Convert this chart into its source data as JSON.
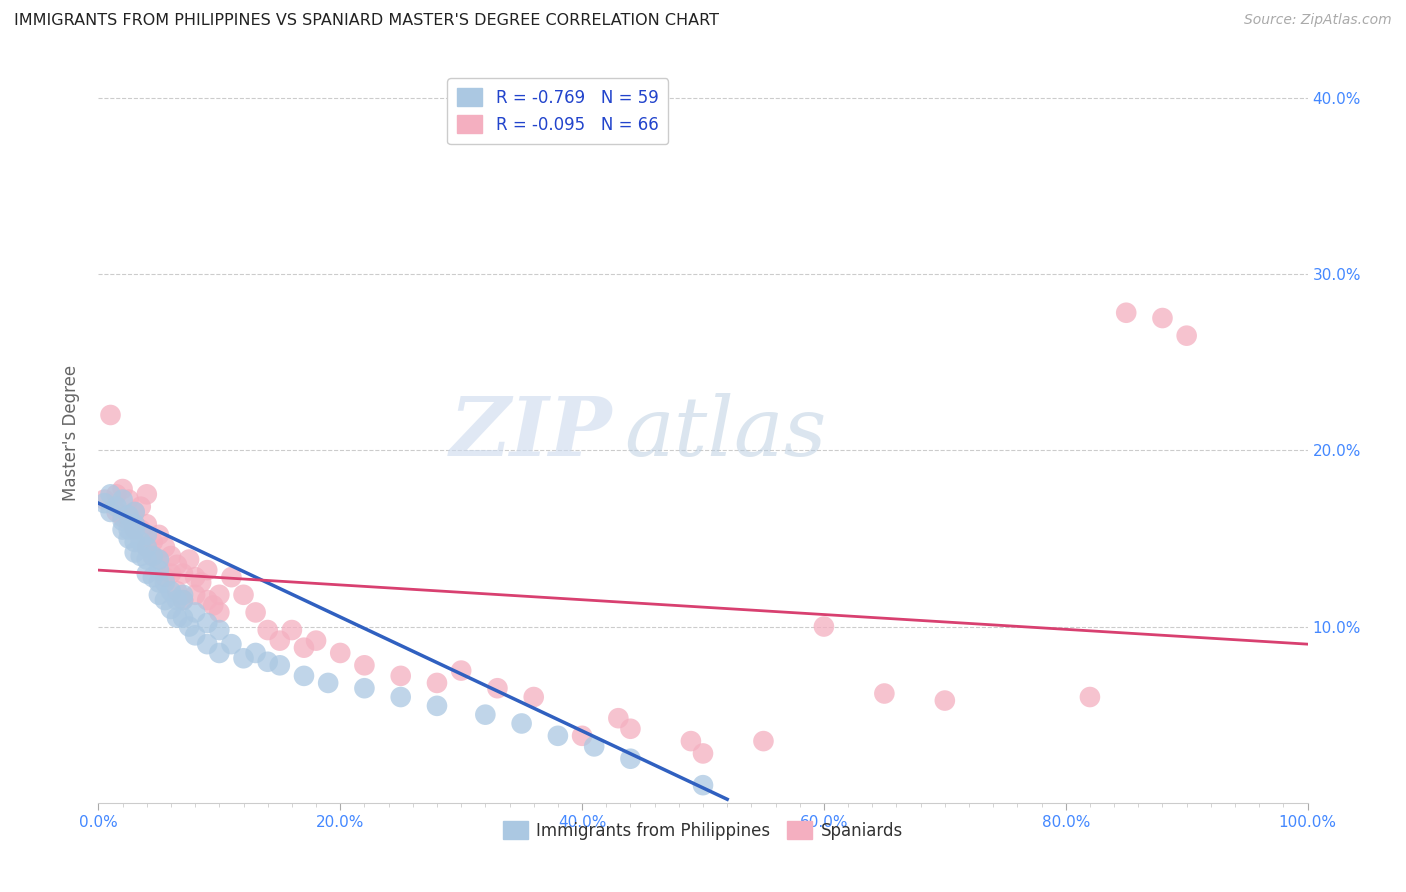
{
  "title": "IMMIGRANTS FROM PHILIPPINES VS SPANIARD MASTER'S DEGREE CORRELATION CHART",
  "source_text": "Source: ZipAtlas.com",
  "ylabel": "Master's Degree",
  "xlim": [
    0,
    1.0
  ],
  "ylim": [
    0,
    0.42
  ],
  "xtick_labels": [
    "0.0%",
    "",
    "",
    "",
    "",
    "",
    "",
    "",
    "",
    "",
    "20.0%",
    "",
    "",
    "",
    "",
    "",
    "",
    "",
    "",
    "",
    "40.0%",
    "",
    "",
    "",
    "",
    "",
    "",
    "",
    "",
    "",
    "60.0%",
    "",
    "",
    "",
    "",
    "",
    "",
    "",
    "",
    "",
    "80.0%",
    "",
    "",
    "",
    "",
    "",
    "",
    "",
    "",
    "",
    "100.0%"
  ],
  "xtick_vals": [
    0.0,
    0.02,
    0.04,
    0.06,
    0.08,
    0.1,
    0.12,
    0.14,
    0.16,
    0.18,
    0.2,
    0.22,
    0.24,
    0.26,
    0.28,
    0.3,
    0.32,
    0.34,
    0.36,
    0.38,
    0.4,
    0.42,
    0.44,
    0.46,
    0.48,
    0.5,
    0.52,
    0.54,
    0.56,
    0.58,
    0.6,
    0.62,
    0.64,
    0.66,
    0.68,
    0.7,
    0.72,
    0.74,
    0.76,
    0.78,
    0.8,
    0.82,
    0.84,
    0.86,
    0.88,
    0.9,
    0.92,
    0.94,
    0.96,
    0.98,
    1.0
  ],
  "ytick_vals": [
    0.1,
    0.2,
    0.3,
    0.4
  ],
  "ytick_labels": [
    "10.0%",
    "20.0%",
    "30.0%",
    "40.0%"
  ],
  "legend_blue_label": "R = -0.769   N = 59",
  "legend_pink_label": "R = -0.095   N = 66",
  "watermark_zip": "ZIP",
  "watermark_atlas": "atlas",
  "blue_color": "#abc8e2",
  "pink_color": "#f4afc0",
  "blue_line_color": "#3060c0",
  "pink_line_color": "#d84070",
  "title_color": "#222222",
  "axis_label_color": "#4488ff",
  "grid_color": "#cccccc",
  "blue_scatter_x": [
    0.005,
    0.01,
    0.01,
    0.015,
    0.02,
    0.02,
    0.02,
    0.025,
    0.025,
    0.025,
    0.03,
    0.03,
    0.03,
    0.03,
    0.03,
    0.035,
    0.035,
    0.04,
    0.04,
    0.04,
    0.04,
    0.045,
    0.045,
    0.05,
    0.05,
    0.05,
    0.05,
    0.055,
    0.055,
    0.06,
    0.06,
    0.065,
    0.065,
    0.07,
    0.07,
    0.07,
    0.075,
    0.08,
    0.08,
    0.09,
    0.09,
    0.1,
    0.1,
    0.11,
    0.12,
    0.13,
    0.14,
    0.15,
    0.17,
    0.19,
    0.22,
    0.25,
    0.28,
    0.32,
    0.35,
    0.38,
    0.41,
    0.44,
    0.5
  ],
  "blue_scatter_y": [
    0.17,
    0.175,
    0.165,
    0.168,
    0.172,
    0.16,
    0.155,
    0.163,
    0.155,
    0.15,
    0.165,
    0.158,
    0.148,
    0.142,
    0.155,
    0.148,
    0.14,
    0.145,
    0.138,
    0.13,
    0.152,
    0.14,
    0.128,
    0.132,
    0.125,
    0.118,
    0.138,
    0.125,
    0.115,
    0.12,
    0.11,
    0.115,
    0.105,
    0.115,
    0.105,
    0.118,
    0.1,
    0.108,
    0.095,
    0.102,
    0.09,
    0.098,
    0.085,
    0.09,
    0.082,
    0.085,
    0.08,
    0.078,
    0.072,
    0.068,
    0.065,
    0.06,
    0.055,
    0.05,
    0.045,
    0.038,
    0.032,
    0.025,
    0.01
  ],
  "pink_scatter_x": [
    0.005,
    0.01,
    0.015,
    0.015,
    0.02,
    0.02,
    0.025,
    0.025,
    0.03,
    0.03,
    0.03,
    0.035,
    0.035,
    0.04,
    0.04,
    0.04,
    0.045,
    0.045,
    0.05,
    0.05,
    0.055,
    0.055,
    0.06,
    0.06,
    0.065,
    0.065,
    0.07,
    0.07,
    0.075,
    0.08,
    0.08,
    0.085,
    0.09,
    0.09,
    0.095,
    0.1,
    0.1,
    0.11,
    0.12,
    0.13,
    0.14,
    0.15,
    0.16,
    0.17,
    0.18,
    0.2,
    0.22,
    0.25,
    0.28,
    0.3,
    0.33,
    0.36,
    0.4,
    0.44,
    0.49,
    0.55,
    0.6,
    0.65,
    0.7,
    0.82,
    0.85,
    0.88,
    0.9,
    0.38,
    0.43,
    0.5
  ],
  "pink_scatter_y": [
    0.172,
    0.22,
    0.165,
    0.175,
    0.162,
    0.178,
    0.16,
    0.172,
    0.158,
    0.165,
    0.155,
    0.155,
    0.168,
    0.145,
    0.158,
    0.175,
    0.148,
    0.14,
    0.152,
    0.138,
    0.145,
    0.128,
    0.14,
    0.13,
    0.135,
    0.12,
    0.13,
    0.115,
    0.138,
    0.128,
    0.118,
    0.125,
    0.115,
    0.132,
    0.112,
    0.118,
    0.108,
    0.128,
    0.118,
    0.108,
    0.098,
    0.092,
    0.098,
    0.088,
    0.092,
    0.085,
    0.078,
    0.072,
    0.068,
    0.075,
    0.065,
    0.06,
    0.038,
    0.042,
    0.035,
    0.035,
    0.1,
    0.062,
    0.058,
    0.06,
    0.278,
    0.275,
    0.265,
    0.39,
    0.048,
    0.028
  ],
  "blue_line_x": [
    0.0,
    0.52
  ],
  "blue_line_y": [
    0.17,
    0.002
  ],
  "pink_line_x": [
    0.0,
    1.0
  ],
  "pink_line_y": [
    0.132,
    0.09
  ],
  "figsize": [
    14.06,
    8.92
  ],
  "dpi": 100
}
